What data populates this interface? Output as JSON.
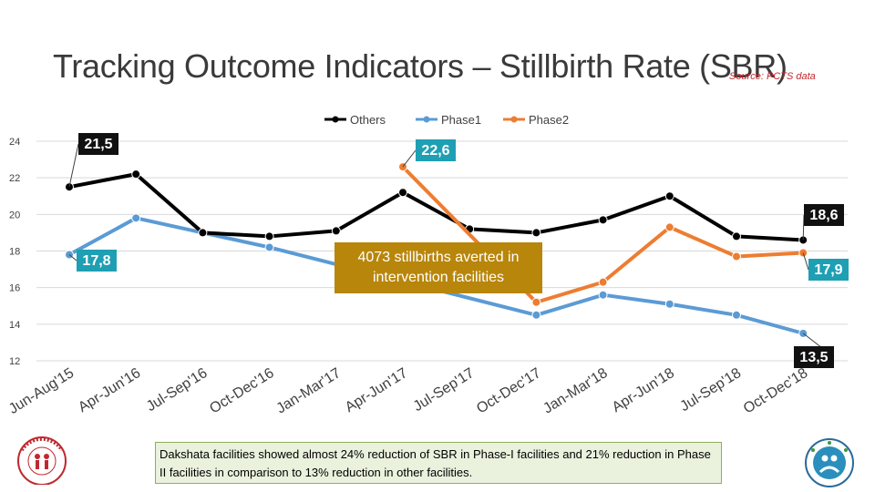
{
  "title": "Tracking Outcome Indicators – Stillbirth Rate (SBR)",
  "source": "Source: PCTS data",
  "callout": "4073 stillbirths averted in intervention facilities",
  "note": "Dakshata facilities showed almost 24% reduction of SBR in Phase-I facilities and 21% reduction in Phase II facilities in comparison to 13% reduction in other facilities.",
  "chart_data": {
    "type": "line",
    "categories": [
      "Jun-Aug'15",
      "Apr-Jun'16",
      "Jul-Sep'16",
      "Oct-Dec'16",
      "Jan-Mar'17",
      "Apr-Jun'17",
      "Jul-Sep'17",
      "Oct-Dec'17",
      "Jan-Mar'18",
      "Apr-Jun'18",
      "Jul-Sep'18",
      "Oct-Dec'18"
    ],
    "ylim": [
      12,
      24
    ],
    "yticks": [
      12,
      14,
      16,
      18,
      20,
      22,
      24
    ],
    "legend_position": "top-center",
    "series": [
      {
        "name": "Others",
        "color": "#000000",
        "values": [
          21.5,
          22.2,
          19.0,
          18.8,
          19.1,
          21.2,
          19.2,
          19.0,
          19.7,
          21.0,
          18.8,
          18.6
        ]
      },
      {
        "name": "Phase1",
        "color": "#5b9bd5",
        "values": [
          17.8,
          19.8,
          19.0,
          18.2,
          null,
          null,
          null,
          14.5,
          15.6,
          15.1,
          14.5,
          13.5
        ]
      },
      {
        "name": "Phase2",
        "color": "#ed7d31",
        "values": [
          null,
          null,
          null,
          null,
          null,
          22.6,
          null,
          15.2,
          16.3,
          19.3,
          17.7,
          17.9
        ]
      }
    ],
    "data_labels": [
      {
        "text": "21,5",
        "series": "Others",
        "index": 0,
        "style": "dark"
      },
      {
        "text": "17,8",
        "series": "Phase1",
        "index": 0,
        "style": "teal"
      },
      {
        "text": "22,6",
        "series": "Phase2",
        "index": 5,
        "style": "teal"
      },
      {
        "text": "18,6",
        "series": "Others",
        "index": 11,
        "style": "dark"
      },
      {
        "text": "17,9",
        "series": "Phase2",
        "index": 11,
        "style": "teal"
      },
      {
        "text": "13,5",
        "series": "Phase1",
        "index": 11,
        "style": "dark"
      }
    ]
  }
}
